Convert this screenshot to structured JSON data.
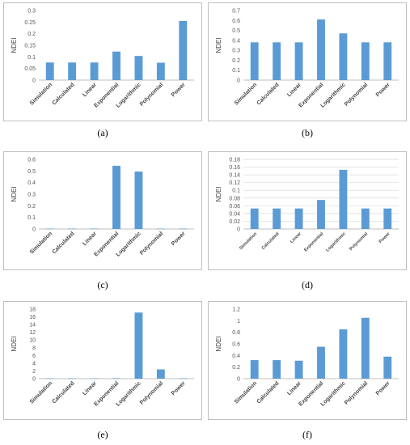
{
  "colors": {
    "bar": "#5b9bd5",
    "grid": "#d9d9d9",
    "frame": "#bfbfbf"
  },
  "chart_data": [
    {
      "type": "bar",
      "caption": "(a)",
      "ylabel": "NDEI",
      "categories": [
        "Simulation",
        "Calculated",
        "Linear",
        "Exponential",
        "Logarithmic",
        "Polynomial",
        "Power"
      ],
      "values": [
        0.076,
        0.076,
        0.076,
        0.123,
        0.104,
        0.075,
        0.255
      ],
      "ylim": [
        0,
        0.3
      ],
      "yticks": [
        "0",
        "0.05",
        "0.1",
        "0.15",
        "0.2",
        "0.25",
        "0.3"
      ],
      "grid": false
    },
    {
      "type": "bar",
      "caption": "(b)",
      "ylabel": "NDEI",
      "categories": [
        "Simulation",
        "Calculated",
        "Linear",
        "Exponential",
        "Logarithmic",
        "Polynomial",
        "Power"
      ],
      "values": [
        0.38,
        0.38,
        0.38,
        0.61,
        0.47,
        0.38,
        0.38
      ],
      "ylim": [
        0,
        0.7
      ],
      "yticks": [
        "0",
        "0.1",
        "0.2",
        "0.3",
        "0.4",
        "0.5",
        "0.6",
        "0.7"
      ],
      "grid": false
    },
    {
      "type": "bar",
      "caption": "(c)",
      "ylabel": "NDEI",
      "categories": [
        "Simulation",
        "Calculated",
        "Linear",
        "Exponential",
        "Logarithmic",
        "Polynomial",
        "Power"
      ],
      "values": [
        0.003,
        0.003,
        0.003,
        0.545,
        0.495,
        0.003,
        0.003
      ],
      "ylim": [
        0,
        0.6
      ],
      "yticks": [
        "0",
        "0.1",
        "0.2",
        "0.3",
        "0.4",
        "0.5",
        "0.6"
      ],
      "grid": false
    },
    {
      "type": "bar",
      "caption": "(d)",
      "ylabel": "NDEI",
      "categories": [
        "Simulation",
        "Calculated",
        "Linear",
        "Exponential",
        "Logarithmic",
        "Polynomial",
        "Power"
      ],
      "values": [
        0.053,
        0.053,
        0.053,
        0.075,
        0.153,
        0.053,
        0.053
      ],
      "ylim": [
        0,
        0.18
      ],
      "yticks": [
        "0",
        "0.02",
        "0.04",
        "0.06",
        "0.08",
        "0.1",
        "0.12",
        "0.14",
        "0.16",
        "0.18"
      ],
      "grid": true
    },
    {
      "type": "bar",
      "caption": "(e)",
      "ylabel": "NDEI",
      "categories": [
        "Simulation",
        "Calculated",
        "Linear",
        "Exponential",
        "Logarithmic",
        "Polynomial",
        "Power"
      ],
      "values": [
        0.08,
        0.08,
        0.08,
        0.12,
        17.1,
        2.4,
        0.08
      ],
      "ylim": [
        0,
        18
      ],
      "yticks": [
        "0",
        "2",
        "4",
        "6",
        "8",
        "10",
        "12",
        "14",
        "16",
        "18"
      ],
      "grid": false
    },
    {
      "type": "bar",
      "caption": "(f)",
      "ylabel": "NDEI",
      "categories": [
        "Simulation",
        "Calculated",
        "Linear",
        "Exponential",
        "Logarithmic",
        "Polynomial",
        "Power"
      ],
      "values": [
        0.32,
        0.32,
        0.31,
        0.55,
        0.85,
        1.05,
        0.38
      ],
      "ylim": [
        0,
        1.2
      ],
      "yticks": [
        "0",
        "0.2",
        "0.4",
        "0.6",
        "0.8",
        "1",
        "1.2"
      ],
      "grid": false
    }
  ]
}
